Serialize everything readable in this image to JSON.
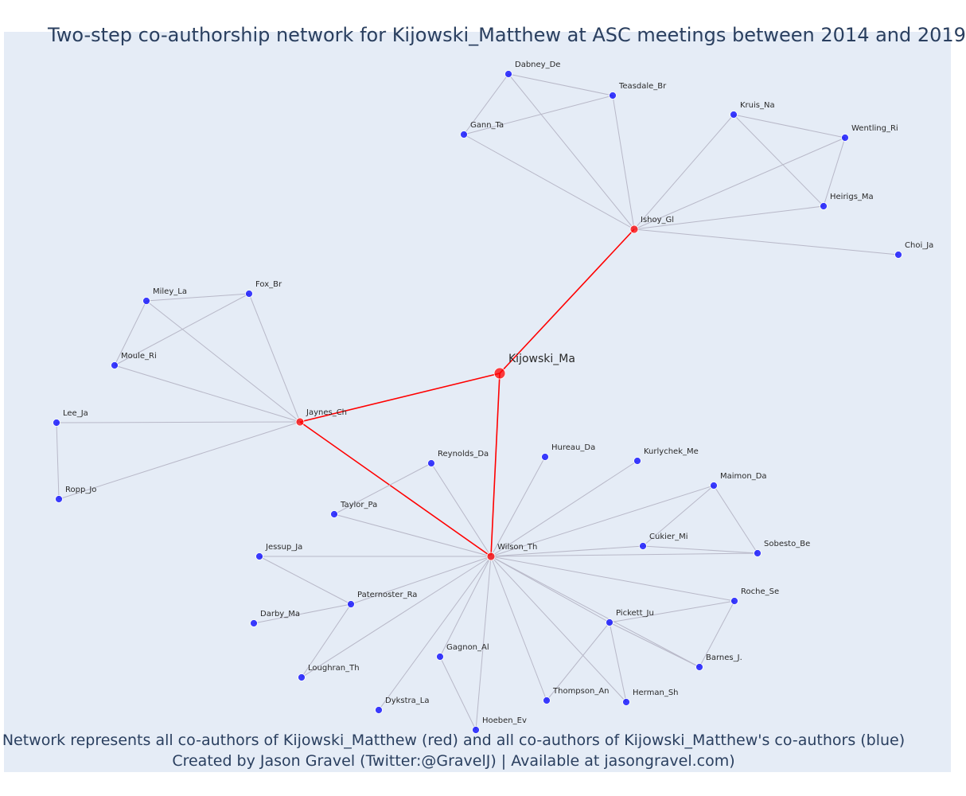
{
  "title": "Two-step co-authorship network for Kijowski_Matthew at ASC meetings between 2014 and 2019",
  "caption": {
    "line1": "Network represents all co-authors of Kijowski_Matthew (red) and all co-authors of Kijowski_Matthew's co-authors (blue)",
    "line2": "Created by Jason Gravel (Twitter:@GravelJ) | Available at jasongravel.com)"
  },
  "colors": {
    "background": "#e5ecf6",
    "ego_node": "#ff0000",
    "coauthor_node": "#ff0000",
    "two_step_node": "#0000ff",
    "ego_edge": "#ff0000",
    "other_edge": "#b8b8c8",
    "node_outline": "#ffffff"
  },
  "nodes": [
    {
      "id": "Kijowski_Ma",
      "label": "Kijowski_Ma",
      "group": "ego"
    },
    {
      "id": "Ishoy_Gl",
      "label": "Ishoy_Gl",
      "group": "coauthor"
    },
    {
      "id": "Jaynes_Ch",
      "label": "Jaynes_Ch",
      "group": "coauthor"
    },
    {
      "id": "Wilson_Th",
      "label": "Wilson_Th",
      "group": "coauthor"
    },
    {
      "id": "Dabney_De",
      "label": "Dabney_De",
      "group": "two_step"
    },
    {
      "id": "Teasdale_Br",
      "label": "Teasdale_Br",
      "group": "two_step"
    },
    {
      "id": "Gann_Ta",
      "label": "Gann_Ta",
      "group": "two_step"
    },
    {
      "id": "Kruis_Na",
      "label": "Kruis_Na",
      "group": "two_step"
    },
    {
      "id": "Wentling_Ri",
      "label": "Wentling_Ri",
      "group": "two_step"
    },
    {
      "id": "Heirigs_Ma",
      "label": "Heirigs_Ma",
      "group": "two_step"
    },
    {
      "id": "Choi_Ja",
      "label": "Choi_Ja",
      "group": "two_step"
    },
    {
      "id": "Miley_La",
      "label": "Miley_La",
      "group": "two_step"
    },
    {
      "id": "Fox_Br",
      "label": "Fox_Br",
      "group": "two_step"
    },
    {
      "id": "Moule_Ri",
      "label": "Moule_Ri",
      "group": "two_step"
    },
    {
      "id": "Lee_Ja",
      "label": "Lee_Ja",
      "group": "two_step"
    },
    {
      "id": "Ropp_Jo",
      "label": "Ropp_Jo",
      "group": "two_step"
    },
    {
      "id": "Reynolds_Da",
      "label": "Reynolds_Da",
      "group": "two_step"
    },
    {
      "id": "Hureau_Da",
      "label": "Hureau_Da",
      "group": "two_step"
    },
    {
      "id": "Kurlychek_Me",
      "label": "Kurlychek_Me",
      "group": "two_step"
    },
    {
      "id": "Maimon_Da",
      "label": "Maimon_Da",
      "group": "two_step"
    },
    {
      "id": "Taylor_Pa",
      "label": "Taylor_Pa",
      "group": "two_step"
    },
    {
      "id": "Cukier_Mi",
      "label": "Cukier_Mi",
      "group": "two_step"
    },
    {
      "id": "Sobesto_Be",
      "label": "Sobesto_Be",
      "group": "two_step"
    },
    {
      "id": "Jessup_Ja",
      "label": "Jessup_Ja",
      "group": "two_step"
    },
    {
      "id": "Paternoster_Ra",
      "label": "Paternoster_Ra",
      "group": "two_step"
    },
    {
      "id": "Darby_Ma",
      "label": "Darby_Ma",
      "group": "two_step"
    },
    {
      "id": "Roche_Se",
      "label": "Roche_Se",
      "group": "two_step"
    },
    {
      "id": "Pickett_Ju",
      "label": "Pickett_Ju",
      "group": "two_step"
    },
    {
      "id": "Barnes_J.",
      "label": "Barnes_J.",
      "group": "two_step"
    },
    {
      "id": "Gagnon_Al",
      "label": "Gagnon_Al",
      "group": "two_step"
    },
    {
      "id": "Loughran_Th",
      "label": "Loughran_Th",
      "group": "two_step"
    },
    {
      "id": "Thompson_An",
      "label": "Thompson_An",
      "group": "two_step"
    },
    {
      "id": "Herman_Sh",
      "label": "Herman_Sh",
      "group": "two_step"
    },
    {
      "id": "Dykstra_La",
      "label": "Dykstra_La",
      "group": "two_step"
    },
    {
      "id": "Hoeben_Ev",
      "label": "Hoeben_Ev",
      "group": "two_step"
    }
  ],
  "edges": [
    [
      "Kijowski_Ma",
      "Ishoy_Gl"
    ],
    [
      "Kijowski_Ma",
      "Jaynes_Ch"
    ],
    [
      "Kijowski_Ma",
      "Wilson_Th"
    ],
    [
      "Jaynes_Ch",
      "Wilson_Th"
    ],
    [
      "Ishoy_Gl",
      "Dabney_De"
    ],
    [
      "Ishoy_Gl",
      "Teasdale_Br"
    ],
    [
      "Ishoy_Gl",
      "Gann_Ta"
    ],
    [
      "Ishoy_Gl",
      "Kruis_Na"
    ],
    [
      "Ishoy_Gl",
      "Wentling_Ri"
    ],
    [
      "Ishoy_Gl",
      "Heirigs_Ma"
    ],
    [
      "Ishoy_Gl",
      "Choi_Ja"
    ],
    [
      "Dabney_De",
      "Teasdale_Br"
    ],
    [
      "Dabney_De",
      "Gann_Ta"
    ],
    [
      "Gann_Ta",
      "Teasdale_Br"
    ],
    [
      "Kruis_Na",
      "Wentling_Ri"
    ],
    [
      "Kruis_Na",
      "Heirigs_Ma"
    ],
    [
      "Wentling_Ri",
      "Heirigs_Ma"
    ],
    [
      "Jaynes_Ch",
      "Miley_La"
    ],
    [
      "Jaynes_Ch",
      "Fox_Br"
    ],
    [
      "Jaynes_Ch",
      "Moule_Ri"
    ],
    [
      "Jaynes_Ch",
      "Lee_Ja"
    ],
    [
      "Jaynes_Ch",
      "Ropp_Jo"
    ],
    [
      "Miley_La",
      "Fox_Br"
    ],
    [
      "Miley_La",
      "Moule_Ri"
    ],
    [
      "Moule_Ri",
      "Fox_Br"
    ],
    [
      "Lee_Ja",
      "Ropp_Jo"
    ],
    [
      "Wilson_Th",
      "Reynolds_Da"
    ],
    [
      "Wilson_Th",
      "Hureau_Da"
    ],
    [
      "Wilson_Th",
      "Kurlychek_Me"
    ],
    [
      "Wilson_Th",
      "Maimon_Da"
    ],
    [
      "Wilson_Th",
      "Taylor_Pa"
    ],
    [
      "Wilson_Th",
      "Cukier_Mi"
    ],
    [
      "Wilson_Th",
      "Sobesto_Be"
    ],
    [
      "Wilson_Th",
      "Jessup_Ja"
    ],
    [
      "Wilson_Th",
      "Paternoster_Ra"
    ],
    [
      "Wilson_Th",
      "Roche_Se"
    ],
    [
      "Wilson_Th",
      "Pickett_Ju"
    ],
    [
      "Wilson_Th",
      "Barnes_J."
    ],
    [
      "Wilson_Th",
      "Gagnon_Al"
    ],
    [
      "Wilson_Th",
      "Loughran_Th"
    ],
    [
      "Wilson_Th",
      "Thompson_An"
    ],
    [
      "Wilson_Th",
      "Herman_Sh"
    ],
    [
      "Wilson_Th",
      "Dykstra_La"
    ],
    [
      "Wilson_Th",
      "Hoeben_Ev"
    ],
    [
      "Reynolds_Da",
      "Taylor_Pa"
    ],
    [
      "Maimon_Da",
      "Cukier_Mi"
    ],
    [
      "Maimon_Da",
      "Sobesto_Be"
    ],
    [
      "Cukier_Mi",
      "Sobesto_Be"
    ],
    [
      "Jessup_Ja",
      "Paternoster_Ra"
    ],
    [
      "Paternoster_Ra",
      "Darby_Ma"
    ],
    [
      "Paternoster_Ra",
      "Loughran_Th"
    ],
    [
      "Pickett_Ju",
      "Roche_Se"
    ],
    [
      "Pickett_Ju",
      "Barnes_J."
    ],
    [
      "Pickett_Ju",
      "Thompson_An"
    ],
    [
      "Pickett_Ju",
      "Herman_Sh"
    ],
    [
      "Roche_Se",
      "Barnes_J."
    ],
    [
      "Gagnon_Al",
      "Hoeben_Ev"
    ]
  ]
}
